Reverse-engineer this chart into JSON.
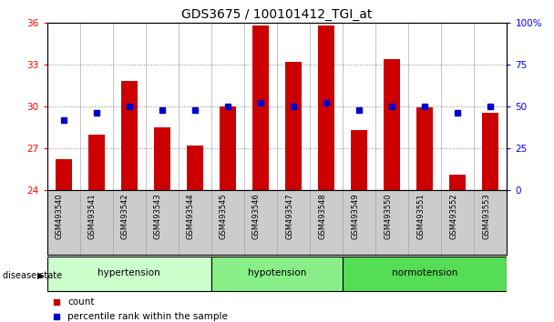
{
  "title": "GDS3675 / 100101412_TGI_at",
  "samples": [
    "GSM493540",
    "GSM493541",
    "GSM493542",
    "GSM493543",
    "GSM493544",
    "GSM493545",
    "GSM493546",
    "GSM493547",
    "GSM493548",
    "GSM493549",
    "GSM493550",
    "GSM493551",
    "GSM493552",
    "GSM493553"
  ],
  "count_values": [
    26.2,
    28.0,
    31.8,
    28.5,
    27.2,
    30.0,
    35.8,
    33.2,
    35.8,
    28.3,
    33.4,
    29.9,
    25.1,
    29.5
  ],
  "percentile_values": [
    42,
    46,
    50,
    48,
    48,
    50,
    52,
    50,
    52,
    48,
    50,
    50,
    46,
    50
  ],
  "ylim_left": [
    24,
    36
  ],
  "ylim_right": [
    0,
    100
  ],
  "yticks_left": [
    24,
    27,
    30,
    33,
    36
  ],
  "yticks_right": [
    0,
    25,
    50,
    75,
    100
  ],
  "bar_color": "#cc0000",
  "dot_color": "#0000cc",
  "groups": [
    {
      "label": "hypertension",
      "start": 0,
      "end": 5,
      "color": "#ccffcc"
    },
    {
      "label": "hypotension",
      "start": 5,
      "end": 9,
      "color": "#88ee88"
    },
    {
      "label": "normotension",
      "start": 9,
      "end": 14,
      "color": "#55dd55"
    }
  ],
  "disease_state_label": "disease state",
  "legend_count_label": "count",
  "legend_pct_label": "percentile rank within the sample",
  "grid_color": "#888888",
  "sample_bg_color": "#cccccc",
  "separator_color": "#888888"
}
